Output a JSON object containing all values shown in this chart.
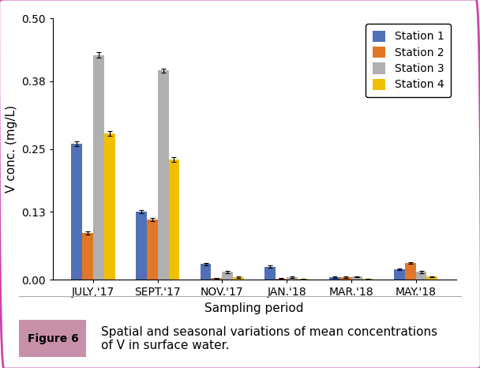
{
  "categories": [
    "JULY,'17",
    "SEPT.'17",
    "NOV.'17",
    "JAN.'18",
    "MAR.'18",
    "MAY.'18"
  ],
  "stations": [
    "Station 1",
    "Station 2",
    "Station 3",
    "Station 4"
  ],
  "values": [
    [
      0.26,
      0.09,
      0.43,
      0.28
    ],
    [
      0.13,
      0.115,
      0.4,
      0.23
    ],
    [
      0.03,
      0.003,
      0.015,
      0.005
    ],
    [
      0.025,
      0.002,
      0.005,
      0.001
    ],
    [
      0.005,
      0.005,
      0.006,
      0.001
    ],
    [
      0.02,
      0.032,
      0.015,
      0.006
    ]
  ],
  "errors": [
    [
      0.004,
      0.003,
      0.005,
      0.004
    ],
    [
      0.003,
      0.003,
      0.004,
      0.004
    ],
    [
      0.002,
      0.001,
      0.002,
      0.001
    ],
    [
      0.002,
      0.001,
      0.001,
      0.001
    ],
    [
      0.001,
      0.001,
      0.001,
      0.001
    ],
    [
      0.002,
      0.002,
      0.002,
      0.001
    ]
  ],
  "colors": [
    "#5070B8",
    "#E07828",
    "#B0B0B0",
    "#F0C000"
  ],
  "ylabel": "V conc. (mg/L)",
  "xlabel": "Sampling period",
  "ylim": [
    0,
    0.5
  ],
  "yticks": [
    0.0,
    0.13,
    0.25,
    0.38,
    0.5
  ],
  "figure_label": "Figure 6",
  "figure_caption": "Spatial and seasonal variations of mean concentrations\nof V in surface water.",
  "figure_label_bg": "#C890A8",
  "border_color": "#CC44AA",
  "axis_fontsize": 11,
  "tick_fontsize": 10,
  "legend_fontsize": 10,
  "caption_fontsize": 11
}
